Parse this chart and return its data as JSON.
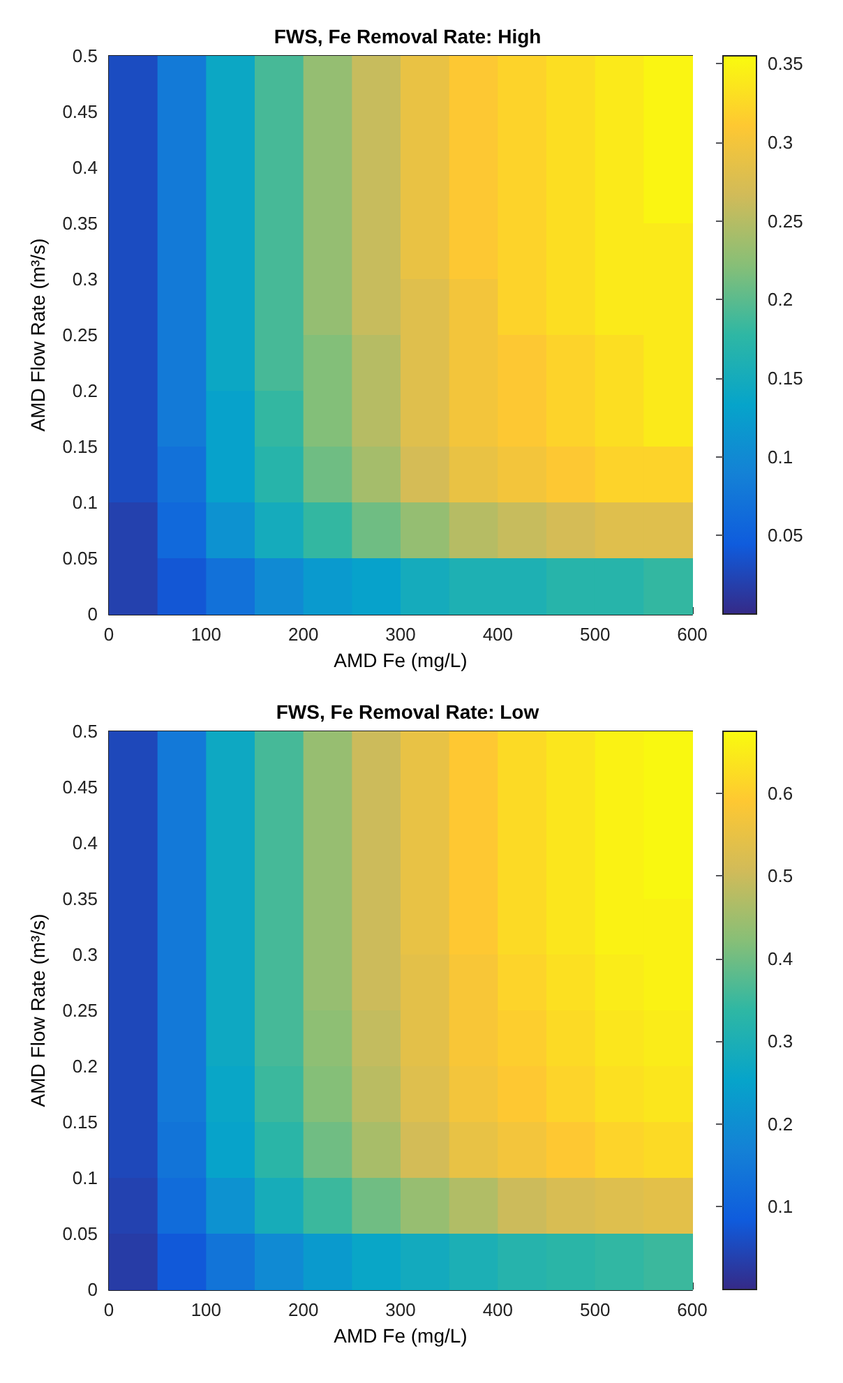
{
  "chart_data": [
    {
      "type": "heatmap",
      "title": "FWS, Fe Removal Rate: High",
      "xlabel": "AMD Fe (mg/L)",
      "ylabel": "AMD Flow Rate (m³/s)",
      "x": [
        25,
        75,
        125,
        175,
        225,
        275,
        325,
        375,
        425,
        475,
        525,
        575
      ],
      "y": [
        0.475,
        0.425,
        0.375,
        0.325,
        0.275,
        0.225,
        0.175,
        0.125,
        0.075,
        0.025
      ],
      "cells": [
        [
          0.03,
          0.08,
          0.14,
          0.19,
          0.23,
          0.26,
          0.29,
          0.31,
          0.32,
          0.33,
          0.34,
          0.35
        ],
        [
          0.03,
          0.08,
          0.14,
          0.19,
          0.23,
          0.26,
          0.29,
          0.31,
          0.32,
          0.33,
          0.34,
          0.35
        ],
        [
          0.03,
          0.08,
          0.14,
          0.19,
          0.23,
          0.26,
          0.29,
          0.31,
          0.32,
          0.33,
          0.34,
          0.35
        ],
        [
          0.03,
          0.08,
          0.14,
          0.19,
          0.23,
          0.26,
          0.29,
          0.31,
          0.32,
          0.33,
          0.34,
          0.34
        ],
        [
          0.03,
          0.08,
          0.14,
          0.19,
          0.23,
          0.26,
          0.28,
          0.3,
          0.32,
          0.33,
          0.34,
          0.34
        ],
        [
          0.03,
          0.08,
          0.14,
          0.19,
          0.22,
          0.25,
          0.28,
          0.3,
          0.31,
          0.32,
          0.33,
          0.34
        ],
        [
          0.03,
          0.08,
          0.13,
          0.18,
          0.22,
          0.25,
          0.28,
          0.3,
          0.31,
          0.32,
          0.33,
          0.34
        ],
        [
          0.03,
          0.07,
          0.13,
          0.17,
          0.21,
          0.24,
          0.27,
          0.29,
          0.3,
          0.31,
          0.32,
          0.32
        ],
        [
          0.02,
          0.06,
          0.11,
          0.15,
          0.18,
          0.21,
          0.23,
          0.25,
          0.26,
          0.27,
          0.28,
          0.28
        ],
        [
          0.02,
          0.04,
          0.07,
          0.1,
          0.12,
          0.13,
          0.15,
          0.16,
          0.16,
          0.17,
          0.17,
          0.18
        ]
      ],
      "clim": [
        0,
        0.355
      ],
      "cticks": [
        0.05,
        0.1,
        0.15,
        0.2,
        0.25,
        0.3,
        0.35
      ],
      "xlim": [
        0,
        600
      ],
      "xticks": [
        0,
        100,
        200,
        300,
        400,
        500,
        600
      ],
      "ylim": [
        0,
        0.5
      ],
      "yticks": [
        0,
        0.05,
        0.1,
        0.15,
        0.2,
        0.25,
        0.3,
        0.35,
        0.4,
        0.45,
        0.5
      ]
    },
    {
      "type": "heatmap",
      "title": "FWS, Fe Removal Rate: Low",
      "xlabel": "AMD Fe (mg/L)",
      "ylabel": "AMD Flow Rate (m³/s)",
      "x": [
        25,
        75,
        125,
        175,
        225,
        275,
        325,
        375,
        425,
        475,
        525,
        575
      ],
      "y": [
        0.475,
        0.425,
        0.375,
        0.325,
        0.275,
        0.225,
        0.175,
        0.125,
        0.075,
        0.025
      ],
      "cells": [
        [
          0.05,
          0.15,
          0.27,
          0.36,
          0.44,
          0.5,
          0.55,
          0.59,
          0.62,
          0.64,
          0.66,
          0.67
        ],
        [
          0.05,
          0.15,
          0.27,
          0.36,
          0.44,
          0.5,
          0.55,
          0.59,
          0.62,
          0.64,
          0.66,
          0.67
        ],
        [
          0.05,
          0.15,
          0.27,
          0.36,
          0.44,
          0.5,
          0.55,
          0.59,
          0.62,
          0.64,
          0.66,
          0.67
        ],
        [
          0.05,
          0.15,
          0.27,
          0.36,
          0.44,
          0.5,
          0.55,
          0.59,
          0.62,
          0.64,
          0.66,
          0.66
        ],
        [
          0.05,
          0.15,
          0.27,
          0.36,
          0.44,
          0.5,
          0.54,
          0.58,
          0.61,
          0.63,
          0.65,
          0.66
        ],
        [
          0.05,
          0.15,
          0.27,
          0.36,
          0.43,
          0.49,
          0.54,
          0.58,
          0.6,
          0.62,
          0.64,
          0.65
        ],
        [
          0.05,
          0.15,
          0.26,
          0.35,
          0.42,
          0.48,
          0.53,
          0.57,
          0.59,
          0.61,
          0.63,
          0.64
        ],
        [
          0.05,
          0.14,
          0.25,
          0.33,
          0.4,
          0.46,
          0.51,
          0.55,
          0.57,
          0.59,
          0.61,
          0.62
        ],
        [
          0.04,
          0.12,
          0.21,
          0.29,
          0.35,
          0.4,
          0.44,
          0.47,
          0.5,
          0.52,
          0.53,
          0.54
        ],
        [
          0.03,
          0.08,
          0.14,
          0.19,
          0.23,
          0.26,
          0.28,
          0.3,
          0.32,
          0.33,
          0.34,
          0.35
        ]
      ],
      "clim": [
        0,
        0.675
      ],
      "cticks": [
        0.1,
        0.2,
        0.3,
        0.4,
        0.5,
        0.6
      ],
      "xlim": [
        0,
        600
      ],
      "xticks": [
        0,
        100,
        200,
        300,
        400,
        500,
        600
      ],
      "ylim": [
        0,
        0.5
      ],
      "yticks": [
        0,
        0.05,
        0.1,
        0.15,
        0.2,
        0.25,
        0.3,
        0.35,
        0.4,
        0.45,
        0.5
      ]
    }
  ]
}
